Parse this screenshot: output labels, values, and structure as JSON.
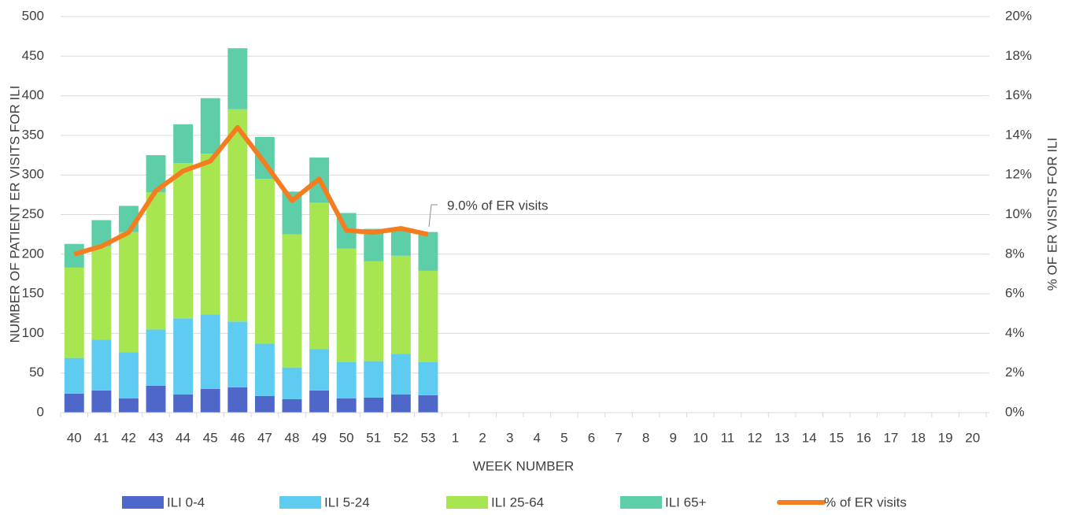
{
  "chart_data": {
    "type": "bar-line",
    "ylabel": "NUMBER OF PATIENT ER VISITS FOR ILI",
    "y2label": "% OF ER VISITS FOR ILI",
    "xlabel": "WEEK NUMBER",
    "annotation": "9.0% of ER visits",
    "categories": [
      "40",
      "41",
      "42",
      "43",
      "44",
      "45",
      "46",
      "47",
      "48",
      "49",
      "50",
      "51",
      "52",
      "53",
      "1",
      "2",
      "3",
      "4",
      "5",
      "6",
      "7",
      "8",
      "9",
      "10",
      "11",
      "12",
      "13",
      "14",
      "15",
      "16",
      "17",
      "18",
      "19",
      "20"
    ],
    "ylim": [
      0,
      500
    ],
    "yticks": [
      0,
      50,
      100,
      150,
      200,
      250,
      300,
      350,
      400,
      450,
      500
    ],
    "y2lim": [
      0,
      20
    ],
    "y2ticks": [
      {
        "value": 0,
        "label": "0%"
      },
      {
        "value": 2,
        "label": "2%"
      },
      {
        "value": 4,
        "label": "4%"
      },
      {
        "value": 6,
        "label": "6%"
      },
      {
        "value": 8,
        "label": "8%"
      },
      {
        "value": 10,
        "label": "10%"
      },
      {
        "value": 12,
        "label": "12%"
      },
      {
        "value": 14,
        "label": "14%"
      },
      {
        "value": 16,
        "label": "16%"
      },
      {
        "value": 18,
        "label": "18%"
      },
      {
        "value": 20,
        "label": "20%"
      }
    ],
    "grid": true,
    "series": [
      {
        "name": "ILI 0-4",
        "color": "#4e67c8",
        "values": [
          24,
          28,
          18,
          34,
          23,
          30,
          32,
          21,
          17,
          28,
          18,
          19,
          23,
          22,
          null,
          null,
          null,
          null,
          null,
          null,
          null,
          null,
          null,
          null,
          null,
          null,
          null,
          null,
          null,
          null,
          null,
          null,
          null,
          null
        ]
      },
      {
        "name": "ILI 5-24",
        "color": "#5ecbf0",
        "values": [
          45,
          64,
          58,
          71,
          96,
          94,
          83,
          66,
          40,
          52,
          46,
          46,
          51,
          42,
          null,
          null,
          null,
          null,
          null,
          null,
          null,
          null,
          null,
          null,
          null,
          null,
          null,
          null,
          null,
          null,
          null,
          null,
          null,
          null
        ]
      },
      {
        "name": "ILI 25-64",
        "color": "#a7e650",
        "values": [
          114,
          118,
          152,
          173,
          196,
          203,
          268,
          208,
          168,
          185,
          143,
          126,
          124,
          115,
          null,
          null,
          null,
          null,
          null,
          null,
          null,
          null,
          null,
          null,
          null,
          null,
          null,
          null,
          null,
          null,
          null,
          null,
          null,
          null
        ]
      },
      {
        "name": "ILI 65+",
        "color": "#5dcea8",
        "values": [
          30,
          33,
          33,
          47,
          49,
          70,
          77,
          53,
          54,
          57,
          45,
          41,
          35,
          49,
          null,
          null,
          null,
          null,
          null,
          null,
          null,
          null,
          null,
          null,
          null,
          null,
          null,
          null,
          null,
          null,
          null,
          null,
          null,
          null
        ]
      },
      {
        "name": "% of ER visits",
        "color": "#f47d20",
        "axis": "y2",
        "values": [
          8.0,
          8.4,
          9.1,
          11.2,
          12.2,
          12.7,
          14.4,
          12.6,
          10.7,
          11.8,
          9.2,
          9.1,
          9.3,
          9.0,
          null,
          null,
          null,
          null,
          null,
          null,
          null,
          null,
          null,
          null,
          null,
          null,
          null,
          null,
          null,
          null,
          null,
          null,
          null,
          null
        ]
      }
    ]
  }
}
